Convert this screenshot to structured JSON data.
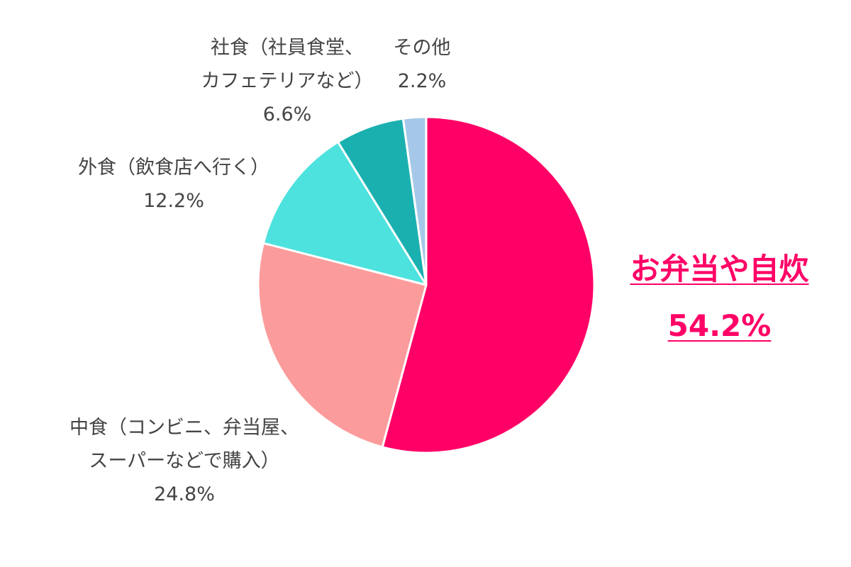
{
  "chart_data": {
    "type": "pie",
    "start_angle_deg": 0,
    "direction": "clockwise",
    "slices": [
      {
        "name_lines": [
          "お弁当や自炊"
        ],
        "pct_label": "54.2%",
        "value": 54.2,
        "color": "#ff0066",
        "highlight": true
      },
      {
        "name_lines": [
          "中食（コンビニ、弁当屋、",
          "スーパーなどで購入）"
        ],
        "pct_label": "24.8%",
        "value": 24.8,
        "color": "#fc9b9b",
        "highlight": false
      },
      {
        "name_lines": [
          "外食（飲食店へ行く）"
        ],
        "pct_label": "12.2%",
        "value": 12.2,
        "color": "#4de2de",
        "highlight": false
      },
      {
        "name_lines": [
          "社食（社員食堂、",
          "カフェテリアなど）"
        ],
        "pct_label": "6.6%",
        "value": 6.6,
        "color": "#1bb0b0",
        "highlight": false
      },
      {
        "name_lines": [
          "その他"
        ],
        "pct_label": "2.2%",
        "value": 2.2,
        "color": "#a5c8e8",
        "highlight": false
      }
    ]
  }
}
